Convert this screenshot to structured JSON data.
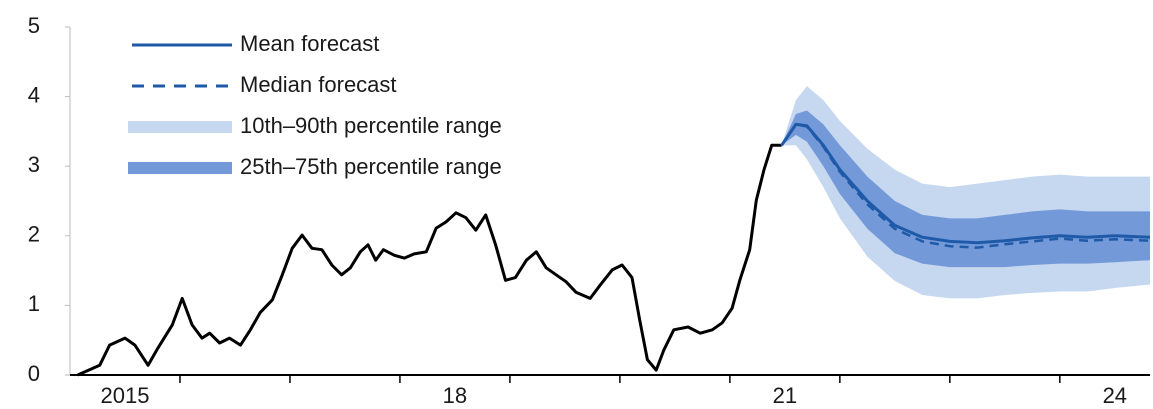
{
  "chart_data": {
    "type": "line",
    "xlim": [
      2015,
      2024.82
    ],
    "ylim": [
      0,
      5
    ],
    "yticks": [
      0,
      1,
      2,
      3,
      4,
      5
    ],
    "xticks": [
      {
        "value": 2015.5,
        "label": "2015"
      },
      {
        "value": 2018.5,
        "label": "18"
      },
      {
        "value": 2021.5,
        "label": "21"
      },
      {
        "value": 2024.5,
        "label": "24"
      }
    ],
    "xminorticks": [
      2016,
      2017,
      2018,
      2019,
      2020,
      2021,
      2022,
      2023,
      2024
    ],
    "legend": "upper left",
    "series": [
      {
        "kind": "band",
        "name": "10th–90th percentile range",
        "color": "#c6d7f0",
        "x": [
          2021.47,
          2021.6,
          2021.7,
          2021.85,
          2022.0,
          2022.25,
          2022.5,
          2022.75,
          2023.0,
          2023.25,
          2023.5,
          2023.75,
          2024.0,
          2024.25,
          2024.5,
          2024.82
        ],
        "lower": [
          3.3,
          3.3,
          3.1,
          2.7,
          2.25,
          1.7,
          1.35,
          1.15,
          1.1,
          1.1,
          1.15,
          1.18,
          1.2,
          1.2,
          1.25,
          1.3
        ],
        "upper": [
          3.3,
          3.95,
          4.15,
          3.95,
          3.65,
          3.25,
          2.95,
          2.75,
          2.7,
          2.75,
          2.8,
          2.85,
          2.88,
          2.85,
          2.85,
          2.85
        ]
      },
      {
        "kind": "band",
        "name": "25th–75th percentile range",
        "color": "#7399d8",
        "x": [
          2021.47,
          2021.6,
          2021.7,
          2021.85,
          2022.0,
          2022.25,
          2022.5,
          2022.75,
          2023.0,
          2023.25,
          2023.5,
          2023.75,
          2024.0,
          2024.25,
          2024.5,
          2024.82
        ],
        "lower": [
          3.3,
          3.45,
          3.35,
          3.0,
          2.6,
          2.1,
          1.75,
          1.6,
          1.55,
          1.55,
          1.55,
          1.58,
          1.6,
          1.6,
          1.62,
          1.65
        ],
        "upper": [
          3.3,
          3.75,
          3.8,
          3.6,
          3.3,
          2.85,
          2.5,
          2.3,
          2.25,
          2.25,
          2.3,
          2.35,
          2.38,
          2.35,
          2.35,
          2.35
        ]
      },
      {
        "kind": "line",
        "color": "#000000",
        "x": [
          2015.07,
          2015.27,
          2015.36,
          2015.5,
          2015.59,
          2015.71,
          2015.8,
          2015.93,
          2016.02,
          2016.11,
          2016.2,
          2016.27,
          2016.36,
          2016.45,
          2016.55,
          2016.64,
          2016.73,
          2016.84,
          2016.93,
          2017.02,
          2017.11,
          2017.2,
          2017.29,
          2017.38,
          2017.47,
          2017.55,
          2017.64,
          2017.71,
          2017.78,
          2017.85,
          2017.95,
          2018.04,
          2018.13,
          2018.24,
          2018.33,
          2018.42,
          2018.51,
          2018.6,
          2018.69,
          2018.78,
          2018.87,
          2018.96,
          2019.05,
          2019.15,
          2019.24,
          2019.33,
          2019.42,
          2019.51,
          2019.6,
          2019.73,
          2019.82,
          2019.93,
          2020.02,
          2020.11,
          2020.18,
          2020.25,
          2020.33,
          2020.4,
          2020.49,
          2020.62,
          2020.73,
          2020.84,
          2020.93,
          2021.02,
          2021.09,
          2021.18,
          2021.24,
          2021.31,
          2021.38,
          2021.47
        ],
        "values": [
          0,
          0.14,
          0.43,
          0.53,
          0.43,
          0.14,
          0.39,
          0.72,
          1.1,
          0.72,
          0.53,
          0.6,
          0.46,
          0.53,
          0.43,
          0.65,
          0.9,
          1.08,
          1.44,
          1.82,
          2.01,
          1.82,
          1.8,
          1.58,
          1.44,
          1.54,
          1.77,
          1.87,
          1.65,
          1.8,
          1.72,
          1.68,
          1.74,
          1.77,
          2.11,
          2.2,
          2.33,
          2.26,
          2.08,
          2.3,
          1.87,
          1.36,
          1.4,
          1.65,
          1.77,
          1.54,
          1.44,
          1.34,
          1.19,
          1.1,
          1.29,
          1.51,
          1.58,
          1.4,
          0.79,
          0.22,
          0.07,
          0.36,
          0.65,
          0.69,
          0.6,
          0.65,
          0.75,
          0.96,
          1.36,
          1.8,
          2.51,
          2.95,
          3.3,
          3.3
        ]
      },
      {
        "kind": "line",
        "name": "Mean forecast",
        "color": "#1f5aa8",
        "x": [
          2021.47,
          2021.6,
          2021.7,
          2021.85,
          2022.0,
          2022.25,
          2022.5,
          2022.75,
          2023.0,
          2023.25,
          2023.5,
          2023.75,
          2024.0,
          2024.25,
          2024.5,
          2024.82
        ],
        "values": [
          3.3,
          3.6,
          3.58,
          3.3,
          2.95,
          2.5,
          2.15,
          1.98,
          1.92,
          1.9,
          1.93,
          1.97,
          2.0,
          1.98,
          2.0,
          1.98
        ]
      },
      {
        "kind": "line",
        "name": "Median forecast",
        "color": "#1f5aa8",
        "dashed": true,
        "x": [
          2021.47,
          2021.6,
          2021.7,
          2021.85,
          2022.0,
          2022.25,
          2022.5,
          2022.75,
          2023.0,
          2023.25,
          2023.5,
          2023.75,
          2024.0,
          2024.25,
          2024.5,
          2024.82
        ],
        "values": [
          3.3,
          3.6,
          3.57,
          3.28,
          2.92,
          2.45,
          2.1,
          1.92,
          1.85,
          1.83,
          1.88,
          1.92,
          1.96,
          1.93,
          1.95,
          1.93
        ]
      }
    ],
    "legend_order": [
      3,
      4,
      0,
      1
    ]
  }
}
